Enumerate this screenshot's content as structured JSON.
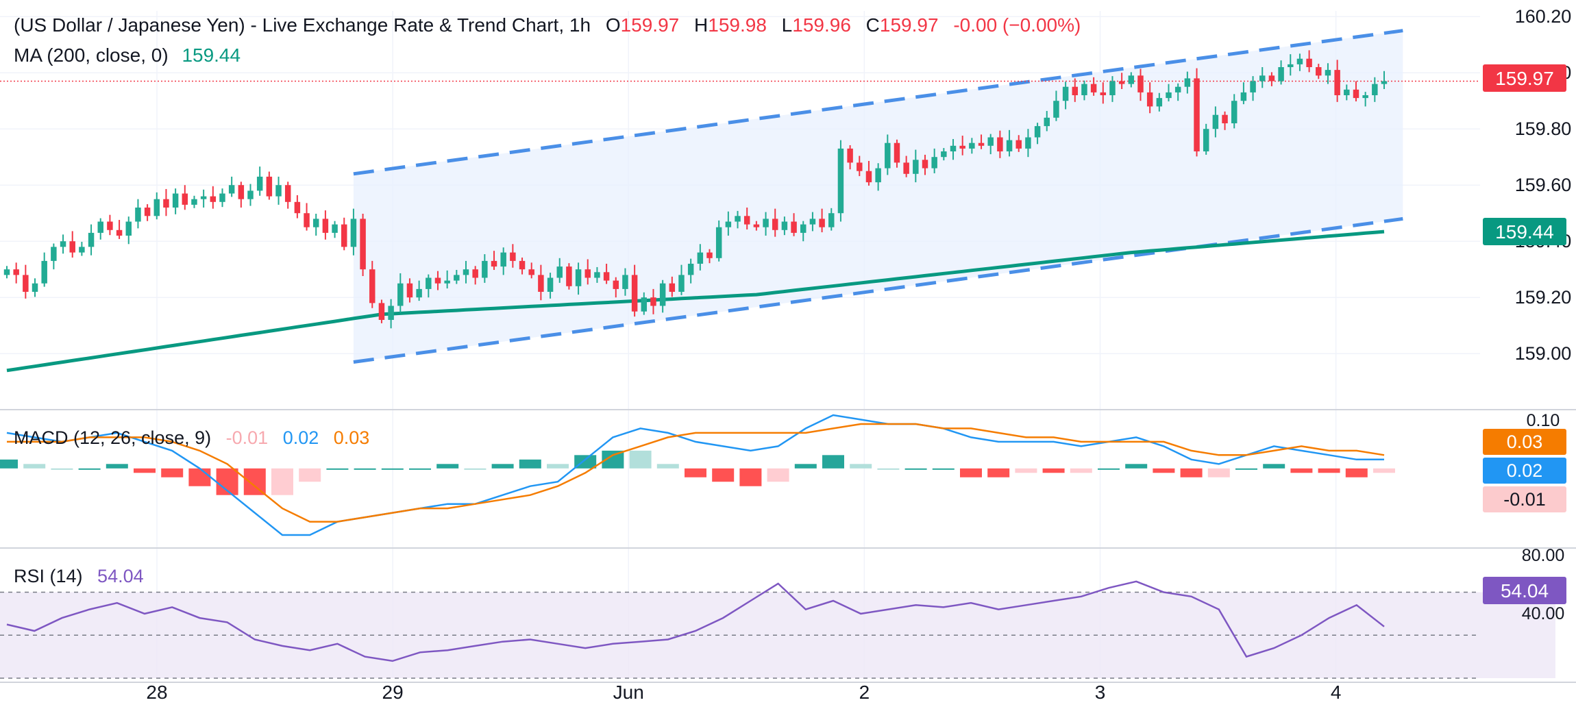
{
  "header": {
    "title": "(US Dollar / Japanese Yen) - Live Exchange Rate & Trend Chart, 1h",
    "o_label": "O",
    "o_value": "159.97",
    "h_label": "H",
    "h_value": "159.98",
    "l_label": "L",
    "l_value": "159.96",
    "c_label": "C",
    "c_value": "159.97",
    "change": "-0.00 (−0.00%)",
    "ma_label": "MA (200, close, 0)",
    "ma_value": "159.44"
  },
  "colors": {
    "up": "#22ab94",
    "down": "#f23645",
    "ma": "#089981",
    "macd": "#2196f3",
    "signal": "#f57c00",
    "rsi": "#7e57c2",
    "channel": "#4a8fe7",
    "text": "#131722"
  },
  "price_badges": {
    "last": "159.97",
    "ma": "159.44"
  },
  "macd_panel": {
    "label": "MACD (12, 26, close, 9)",
    "hist_value": "-0.01",
    "macd_value": "0.02",
    "signal_value": "0.03",
    "badge_signal": "0.03",
    "badge_macd": "0.02",
    "badge_hist": "-0.01",
    "axis_top": "0.10"
  },
  "rsi_panel": {
    "label": "RSI (14)",
    "value": "54.04",
    "badge": "54.04",
    "axis": [
      "80.00",
      "40.00"
    ]
  },
  "chart_data": [
    {
      "type": "candlestick",
      "title": "(US Dollar / Japanese Yen) - Live Exchange Rate & Trend Chart, 1h",
      "x_tick_labels": [
        "28",
        "29",
        "Jun",
        "2",
        "3",
        "4"
      ],
      "y_tick_labels": [
        "160.20",
        "160.00",
        "159.80",
        "159.60",
        "159.40",
        "159.20",
        "159.00"
      ],
      "ylim": [
        158.82,
        160.22
      ],
      "close_series": [
        159.3,
        159.28,
        159.22,
        159.25,
        159.33,
        159.38,
        159.4,
        159.36,
        159.38,
        159.43,
        159.47,
        159.44,
        159.42,
        159.47,
        159.52,
        159.49,
        159.55,
        159.52,
        159.57,
        159.53,
        159.55,
        159.56,
        159.54,
        159.57,
        159.6,
        159.55,
        159.58,
        159.63,
        159.56,
        159.6,
        159.54,
        159.5,
        159.45,
        159.48,
        159.43,
        159.46,
        159.38,
        159.48,
        159.3,
        159.18,
        159.12,
        159.17,
        159.25,
        159.2,
        159.23,
        159.27,
        159.25,
        159.26,
        159.28,
        159.3,
        159.27,
        159.33,
        159.31,
        159.36,
        159.33,
        159.3,
        159.28,
        159.22,
        159.27,
        159.31,
        159.24,
        159.3,
        159.27,
        159.29,
        159.26,
        159.23,
        159.28,
        159.15,
        159.2,
        159.17,
        159.25,
        159.22,
        159.28,
        159.32,
        159.36,
        159.34,
        159.45,
        159.47,
        159.49,
        159.46,
        159.45,
        159.48,
        159.44,
        159.47,
        159.43,
        159.46,
        159.48,
        159.45,
        159.5,
        159.73,
        159.68,
        159.65,
        159.61,
        159.66,
        159.75,
        159.68,
        159.64,
        159.69,
        159.66,
        159.7,
        159.72,
        159.74,
        159.73,
        159.75,
        159.74,
        159.77,
        159.72,
        159.76,
        159.73,
        159.77,
        159.81,
        159.84,
        159.9,
        159.95,
        159.92,
        159.96,
        159.93,
        159.92,
        159.97,
        159.96,
        159.99,
        159.93,
        159.88,
        159.91,
        159.93,
        159.95,
        159.98,
        159.72,
        159.8,
        159.85,
        159.82,
        159.9,
        159.93,
        159.97,
        159.99,
        159.97,
        160.02,
        160.03,
        160.05,
        160.02,
        159.99,
        160.01,
        159.92,
        159.94,
        159.91,
        159.92,
        159.96,
        159.97
      ]
    },
    {
      "type": "line",
      "name": "MA (200, close, 0)",
      "x": [
        0,
        40,
        80,
        120,
        149
      ],
      "values": [
        158.94,
        159.14,
        159.21,
        159.36,
        159.44
      ]
    },
    {
      "type": "area",
      "title": "Trend channel",
      "upper": [
        [
          37,
          159.64
        ],
        [
          149,
          160.15
        ]
      ],
      "lower": [
        [
          37,
          158.97
        ],
        [
          149,
          159.48
        ]
      ]
    },
    {
      "type": "line",
      "title": "MACD (12, 26, close, 9)",
      "series": [
        {
          "name": "MACD",
          "values": [
            0.08,
            0.07,
            0.06,
            0.07,
            0.08,
            0.06,
            0.04,
            0.0,
            -0.05,
            -0.1,
            -0.15,
            -0.15,
            -0.12,
            -0.11,
            -0.1,
            -0.09,
            -0.08,
            -0.08,
            -0.06,
            -0.04,
            -0.03,
            0.02,
            0.07,
            0.09,
            0.08,
            0.06,
            0.05,
            0.04,
            0.05,
            0.09,
            0.12,
            0.11,
            0.1,
            0.1,
            0.09,
            0.07,
            0.06,
            0.06,
            0.06,
            0.05,
            0.06,
            0.07,
            0.05,
            0.02,
            0.01,
            0.03,
            0.05,
            0.04,
            0.03,
            0.02,
            0.02
          ]
        },
        {
          "name": "Signal",
          "values": [
            0.06,
            0.06,
            0.06,
            0.07,
            0.07,
            0.07,
            0.06,
            0.04,
            0.01,
            -0.04,
            -0.09,
            -0.12,
            -0.12,
            -0.11,
            -0.1,
            -0.09,
            -0.09,
            -0.08,
            -0.07,
            -0.06,
            -0.04,
            -0.01,
            0.03,
            0.05,
            0.07,
            0.08,
            0.08,
            0.08,
            0.08,
            0.08,
            0.09,
            0.1,
            0.1,
            0.1,
            0.09,
            0.09,
            0.08,
            0.07,
            0.07,
            0.06,
            0.06,
            0.06,
            0.06,
            0.04,
            0.03,
            0.03,
            0.04,
            0.05,
            0.04,
            0.04,
            0.03
          ]
        }
      ],
      "ylim": [
        -0.17,
        0.12
      ]
    },
    {
      "type": "line",
      "title": "RSI (14)",
      "series": [
        {
          "name": "RSI",
          "values": [
            55,
            52,
            58,
            62,
            65,
            60,
            63,
            58,
            56,
            48,
            45,
            43,
            46,
            40,
            38,
            42,
            43,
            45,
            47,
            48,
            46,
            44,
            46,
            47,
            48,
            52,
            58,
            66,
            74,
            62,
            66,
            60,
            62,
            64,
            63,
            65,
            62,
            64,
            66,
            68,
            72,
            75,
            70,
            68,
            62,
            40,
            44,
            50,
            58,
            64,
            54
          ]
        }
      ],
      "ylim": [
        30,
        88
      ],
      "levels": [
        70,
        50,
        30
      ]
    }
  ]
}
